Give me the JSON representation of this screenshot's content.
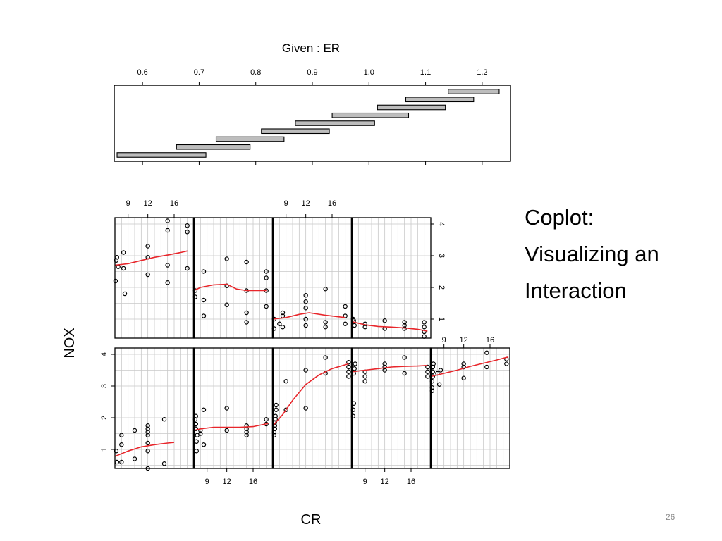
{
  "slide": {
    "title_lines": [
      "Coplot:",
      "Visualizing an",
      "Interaction"
    ],
    "page_number": "26"
  },
  "chart_data": {
    "type": "coplot",
    "title": "Given : ER",
    "xlabel": "CR",
    "ylabel": "NOX",
    "given_axis": {
      "range": [
        0.55,
        1.25
      ],
      "tick_values": [
        0.6,
        0.7,
        0.8,
        0.9,
        1.0,
        1.1,
        1.2
      ],
      "tick_labels": [
        "0.6",
        "0.7",
        "0.8",
        "0.9",
        "1.0",
        "1.1",
        "1.2"
      ],
      "intervals": [
        [
          0.555,
          0.712
        ],
        [
          0.66,
          0.79
        ],
        [
          0.73,
          0.85
        ],
        [
          0.81,
          0.93
        ],
        [
          0.87,
          1.01
        ],
        [
          0.935,
          1.07
        ],
        [
          1.015,
          1.135
        ],
        [
          1.065,
          1.185
        ],
        [
          1.14,
          1.23
        ]
      ]
    },
    "xlim": [
      7,
      19
    ],
    "ylim": [
      0.4,
      4.2
    ],
    "x_ticks": [
      9,
      12,
      16
    ],
    "y_ticks": [
      1,
      2,
      3,
      4
    ],
    "panels": [
      {
        "points": [
          [
            7.2,
            0.95
          ],
          [
            7.3,
            0.6
          ],
          [
            8,
            1.45
          ],
          [
            8,
            1.15
          ],
          [
            8,
            0.6
          ],
          [
            10,
            0.7
          ],
          [
            10,
            1.6
          ],
          [
            12,
            1.45
          ],
          [
            12,
            1.55
          ],
          [
            12,
            1.65
          ],
          [
            12,
            1.75
          ],
          [
            12,
            1.2
          ],
          [
            12,
            0.95
          ],
          [
            12,
            0.4
          ],
          [
            14.5,
            0.55
          ],
          [
            14.5,
            1.95
          ]
        ],
        "loess": [
          [
            7,
            0.78
          ],
          [
            9,
            0.95
          ],
          [
            11,
            1.08
          ],
          [
            13,
            1.15
          ],
          [
            15,
            1.2
          ],
          [
            16,
            1.22
          ]
        ]
      },
      {
        "points": [
          [
            7.2,
            1.95
          ],
          [
            7.3,
            1.65
          ],
          [
            7.3,
            1.8
          ],
          [
            7.3,
            2.05
          ],
          [
            7.4,
            0.95
          ],
          [
            7.4,
            1.25
          ],
          [
            7.5,
            1.45
          ],
          [
            8,
            1.5
          ],
          [
            8,
            1.6
          ],
          [
            8.5,
            2.25
          ],
          [
            8.5,
            1.15
          ],
          [
            12,
            2.3
          ],
          [
            12,
            1.6
          ],
          [
            15,
            1.75
          ],
          [
            15,
            1.65
          ],
          [
            15,
            1.55
          ],
          [
            15,
            1.45
          ],
          [
            18,
            1.95
          ],
          [
            18,
            1.8
          ]
        ],
        "loess": [
          [
            7,
            1.6
          ],
          [
            8,
            1.65
          ],
          [
            10,
            1.7
          ],
          [
            12,
            1.7
          ],
          [
            14,
            1.7
          ],
          [
            16,
            1.72
          ],
          [
            18.3,
            1.82
          ]
        ]
      },
      {
        "points": [
          [
            7.2,
            1.45
          ],
          [
            7.2,
            1.55
          ],
          [
            7.3,
            1.65
          ],
          [
            7.3,
            1.75
          ],
          [
            7.3,
            1.85
          ],
          [
            7.4,
            1.95
          ],
          [
            7.4,
            2.05
          ],
          [
            7.5,
            2.25
          ],
          [
            7.5,
            2.4
          ],
          [
            9,
            2.25
          ],
          [
            9,
            3.15
          ],
          [
            12,
            2.3
          ],
          [
            12,
            3.5
          ],
          [
            15,
            3.4
          ],
          [
            15,
            3.9
          ],
          [
            18.5,
            3.3
          ],
          [
            18.5,
            3.45
          ],
          [
            18.5,
            3.6
          ],
          [
            18.5,
            3.75
          ]
        ],
        "loess": [
          [
            7,
            1.75
          ],
          [
            8.5,
            2.1
          ],
          [
            10,
            2.55
          ],
          [
            12,
            3.05
          ],
          [
            14,
            3.35
          ],
          [
            16,
            3.55
          ],
          [
            18.5,
            3.7
          ]
        ]
      },
      {
        "points": [
          [
            7.2,
            2.05
          ],
          [
            7.2,
            2.25
          ],
          [
            7.3,
            2.45
          ],
          [
            7.3,
            3.4
          ],
          [
            7.4,
            3.55
          ],
          [
            7.5,
            3.7
          ],
          [
            9,
            3.45
          ],
          [
            9,
            3.3
          ],
          [
            9,
            3.15
          ],
          [
            12,
            3.5
          ],
          [
            12,
            3.6
          ],
          [
            12,
            3.7
          ],
          [
            15,
            3.4
          ],
          [
            15,
            3.9
          ],
          [
            18.5,
            3.3
          ],
          [
            18.5,
            3.45
          ],
          [
            18.5,
            3.6
          ]
        ],
        "loess": [
          [
            7,
            3.45
          ],
          [
            9,
            3.5
          ],
          [
            11,
            3.55
          ],
          [
            13,
            3.6
          ],
          [
            15,
            3.62
          ],
          [
            17,
            3.63
          ],
          [
            18.5,
            3.65
          ]
        ]
      },
      {
        "points": [
          [
            7.2,
            2.85
          ],
          [
            7.2,
            2.95
          ],
          [
            7.2,
            3.15
          ],
          [
            7.3,
            3.3
          ],
          [
            7.3,
            3.45
          ],
          [
            7.3,
            3.6
          ],
          [
            7.4,
            3.7
          ],
          [
            8,
            3.4
          ],
          [
            8.3,
            3.05
          ],
          [
            8.5,
            3.5
          ],
          [
            12,
            3.25
          ],
          [
            12,
            3.6
          ],
          [
            12,
            3.7
          ],
          [
            15.5,
            3.6
          ],
          [
            15.5,
            4.05
          ],
          [
            18.5,
            3.7
          ],
          [
            18.5,
            3.85
          ]
        ],
        "loess": [
          [
            7,
            3.3
          ],
          [
            9,
            3.4
          ],
          [
            11,
            3.5
          ],
          [
            13,
            3.62
          ],
          [
            15,
            3.72
          ],
          [
            17,
            3.82
          ],
          [
            18.8,
            3.92
          ]
        ]
      },
      {
        "points": [
          [
            7.1,
            2.2
          ],
          [
            7.2,
            2.85
          ],
          [
            7.3,
            2.95
          ],
          [
            7.5,
            2.65
          ],
          [
            8.3,
            3.1
          ],
          [
            8.3,
            2.6
          ],
          [
            8.5,
            1.8
          ],
          [
            12,
            3.3
          ],
          [
            12,
            2.95
          ],
          [
            12,
            2.4
          ],
          [
            15,
            2.15
          ],
          [
            15,
            2.7
          ],
          [
            15,
            3.8
          ],
          [
            15,
            4.1
          ],
          [
            18,
            3.75
          ],
          [
            18,
            3.95
          ],
          [
            18,
            2.6
          ]
        ],
        "loess": [
          [
            7,
            2.7
          ],
          [
            9,
            2.75
          ],
          [
            11,
            2.85
          ],
          [
            13,
            2.95
          ],
          [
            15,
            3.02
          ],
          [
            17,
            3.1
          ],
          [
            18,
            3.15
          ]
        ]
      },
      {
        "points": [
          [
            7.2,
            1.9
          ],
          [
            7.2,
            1.7
          ],
          [
            8.5,
            2.5
          ],
          [
            8.5,
            1.1
          ],
          [
            8.5,
            1.6
          ],
          [
            12,
            1.45
          ],
          [
            12,
            2.05
          ],
          [
            12,
            2.9
          ],
          [
            15,
            1.9
          ],
          [
            15,
            1.2
          ],
          [
            15,
            0.9
          ],
          [
            15,
            2.8
          ],
          [
            18,
            2.5
          ],
          [
            18,
            1.9
          ],
          [
            18,
            2.3
          ],
          [
            18,
            1.4
          ]
        ],
        "loess": [
          [
            7,
            1.9
          ],
          [
            8,
            2.0
          ],
          [
            10,
            2.08
          ],
          [
            12,
            2.1
          ],
          [
            13.5,
            1.95
          ],
          [
            15,
            1.9
          ],
          [
            18,
            1.9
          ]
        ]
      },
      {
        "points": [
          [
            7.2,
            0.7
          ],
          [
            7.2,
            1.0
          ],
          [
            8,
            0.85
          ],
          [
            8.5,
            1.1
          ],
          [
            8.5,
            0.75
          ],
          [
            8.5,
            1.2
          ],
          [
            12,
            1.75
          ],
          [
            12,
            1.55
          ],
          [
            12,
            1.35
          ],
          [
            12,
            1.0
          ],
          [
            12,
            0.8
          ],
          [
            15,
            1.95
          ],
          [
            15,
            0.9
          ],
          [
            15,
            0.75
          ],
          [
            18,
            1.4
          ],
          [
            18,
            1.1
          ],
          [
            18,
            0.85
          ]
        ],
        "loess": [
          [
            7,
            1.0
          ],
          [
            9,
            1.05
          ],
          [
            11,
            1.15
          ],
          [
            12.5,
            1.2
          ],
          [
            15,
            1.12
          ],
          [
            18,
            1.05
          ]
        ]
      },
      {
        "points": [
          [
            7.2,
            1.0
          ],
          [
            7.3,
            0.95
          ],
          [
            7.4,
            0.8
          ],
          [
            9,
            0.75
          ],
          [
            9,
            0.85
          ],
          [
            12,
            0.95
          ],
          [
            12,
            0.7
          ],
          [
            15,
            0.7
          ],
          [
            15,
            0.8
          ],
          [
            15,
            0.9
          ],
          [
            18,
            0.6
          ],
          [
            18,
            0.45
          ],
          [
            18,
            0.75
          ],
          [
            18,
            0.9
          ]
        ],
        "loess": [
          [
            7,
            0.92
          ],
          [
            9,
            0.82
          ],
          [
            11,
            0.77
          ],
          [
            13,
            0.75
          ],
          [
            15,
            0.72
          ],
          [
            17,
            0.68
          ],
          [
            18.5,
            0.62
          ]
        ]
      }
    ]
  },
  "colors": {
    "loess": "#e8262b",
    "frame": "#000000",
    "grid": "#c8c8c8",
    "interval_fill": "#bdbdbd",
    "page_number": "#8a8a8a"
  }
}
